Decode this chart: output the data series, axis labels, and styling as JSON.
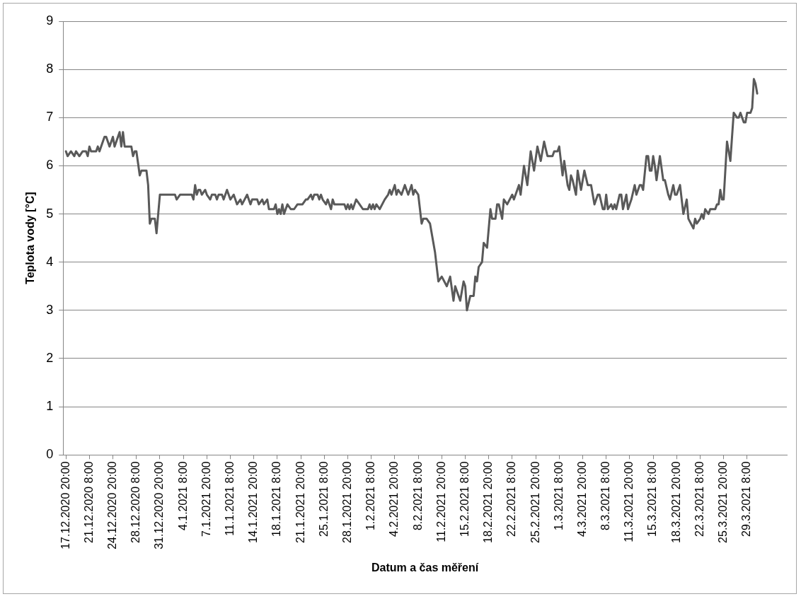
{
  "chart_data": {
    "type": "line",
    "xlabel": "Datum a čas měření",
    "ylabel": "Teplota vody [°C]",
    "xlim": [
      "2020-12-17T10:00",
      "2021-04-04T06:00"
    ],
    "xticks": [
      {
        "value": "2020-12-17T20:00",
        "label": "17.12.2020 20:00"
      },
      {
        "value": "2020-12-21T08:00",
        "label": "21.12.2020 8:00"
      },
      {
        "value": "2020-12-24T20:00",
        "label": "24.12.2020 20:00"
      },
      {
        "value": "2020-12-28T08:00",
        "label": "28.12.2020 8:00"
      },
      {
        "value": "2020-12-31T20:00",
        "label": "31.12.2020 20:00"
      },
      {
        "value": "2021-01-04T08:00",
        "label": "4.1.2021 8:00"
      },
      {
        "value": "2021-01-07T20:00",
        "label": "7.1.2021 20:00"
      },
      {
        "value": "2021-01-11T08:00",
        "label": "11.1.2021 8:00"
      },
      {
        "value": "2021-01-14T20:00",
        "label": "14.1.2021 20:00"
      },
      {
        "value": "2021-01-18T08:00",
        "label": "18.1.2021 8:00"
      },
      {
        "value": "2021-01-21T20:00",
        "label": "21.1.2021 20:00"
      },
      {
        "value": "2021-01-25T08:00",
        "label": "25.1.2021 8:00"
      },
      {
        "value": "2021-01-28T20:00",
        "label": "28.1.2021 20:00"
      },
      {
        "value": "2021-02-01T08:00",
        "label": "1.2.2021 8:00"
      },
      {
        "value": "2021-02-04T20:00",
        "label": "4.2.2021 20:00"
      },
      {
        "value": "2021-02-08T08:00",
        "label": "8.2.2021 8:00"
      },
      {
        "value": "2021-02-11T20:00",
        "label": "11.2.2021 20:00"
      },
      {
        "value": "2021-02-15T08:00",
        "label": "15.2.2021 8:00"
      },
      {
        "value": "2021-02-18T20:00",
        "label": "18.2.2021 20:00"
      },
      {
        "value": "2021-02-22T08:00",
        "label": "22.2.2021 8:00"
      },
      {
        "value": "2021-02-25T20:00",
        "label": "25.2.2021 20:00"
      },
      {
        "value": "2021-03-01T08:00",
        "label": "1.3.2021 8:00"
      },
      {
        "value": "2021-03-04T20:00",
        "label": "4.3.2021 20:00"
      },
      {
        "value": "2021-03-08T08:00",
        "label": "8.3.2021 8:00"
      },
      {
        "value": "2021-03-11T20:00",
        "label": "11.3.2021 20:00"
      },
      {
        "value": "2021-03-15T08:00",
        "label": "15.3.2021 8:00"
      },
      {
        "value": "2021-03-18T20:00",
        "label": "18.3.2021 20:00"
      },
      {
        "value": "2021-03-22T08:00",
        "label": "22.3.2021 8:00"
      },
      {
        "value": "2021-03-25T20:00",
        "label": "25.3.2021 20:00"
      },
      {
        "value": "2021-03-29T08:00",
        "label": "29.3.2021 8:00"
      }
    ],
    "ylim": [
      0,
      9
    ],
    "yticks": [
      0,
      1,
      2,
      3,
      4,
      5,
      6,
      7,
      8,
      9
    ],
    "grid": "y",
    "legend": false,
    "marker": "none",
    "line_style": "solid",
    "x": [
      "2020-12-17T20:00",
      "2020-12-18T02:00",
      "2020-12-18T14:00",
      "2020-12-19T02:00",
      "2020-12-19T08:00",
      "2020-12-19T20:00",
      "2020-12-20T08:00",
      "2020-12-20T20:00",
      "2020-12-21T02:00",
      "2020-12-21T08:00",
      "2020-12-21T14:00",
      "2020-12-22T08:00",
      "2020-12-22T14:00",
      "2020-12-22T20:00",
      "2020-12-23T14:00",
      "2020-12-23T20:00",
      "2020-12-24T08:00",
      "2020-12-24T20:00",
      "2020-12-25T02:00",
      "2020-12-25T20:00",
      "2020-12-26T02:00",
      "2020-12-26T08:00",
      "2020-12-26T14:00",
      "2020-12-27T14:00",
      "2020-12-27T20:00",
      "2020-12-28T02:00",
      "2020-12-28T08:00",
      "2020-12-28T20:00",
      "2020-12-29T02:00",
      "2020-12-29T20:00",
      "2020-12-30T02:00",
      "2020-12-30T08:00",
      "2020-12-30T14:00",
      "2020-12-31T02:00",
      "2020-12-31T08:00",
      "2020-12-31T20:00",
      "2021-01-03T02:00",
      "2021-01-03T08:00",
      "2021-01-03T20:00",
      "2021-01-05T14:00",
      "2021-01-05T20:00",
      "2021-01-06T02:00",
      "2021-01-06T08:00",
      "2021-01-06T14:00",
      "2021-01-06T20:00",
      "2021-01-07T02:00",
      "2021-01-07T14:00",
      "2021-01-07T20:00",
      "2021-01-08T08:00",
      "2021-01-08T14:00",
      "2021-01-09T02:00",
      "2021-01-09T08:00",
      "2021-01-09T14:00",
      "2021-01-10T02:00",
      "2021-01-10T08:00",
      "2021-01-10T20:00",
      "2021-01-11T08:00",
      "2021-01-11T20:00",
      "2021-01-12T08:00",
      "2021-01-12T20:00",
      "2021-01-13T02:00",
      "2021-01-13T20:00",
      "2021-01-14T08:00",
      "2021-01-14T14:00",
      "2021-01-15T08:00",
      "2021-01-15T14:00",
      "2021-01-16T02:00",
      "2021-01-16T08:00",
      "2021-01-16T20:00",
      "2021-01-17T02:00",
      "2021-01-17T20:00",
      "2021-01-18T02:00",
      "2021-01-18T08:00",
      "2021-01-18T14:00",
      "2021-01-18T20:00",
      "2021-01-19T02:00",
      "2021-01-19T08:00",
      "2021-01-19T20:00",
      "2021-01-20T08:00",
      "2021-01-20T20:00",
      "2021-01-21T08:00",
      "2021-01-22T02:00",
      "2021-01-22T14:00",
      "2021-01-22T20:00",
      "2021-01-23T08:00",
      "2021-01-23T14:00",
      "2021-01-23T20:00",
      "2021-01-24T08:00",
      "2021-01-24T14:00",
      "2021-01-24T20:00",
      "2021-01-25T02:00",
      "2021-01-25T14:00",
      "2021-01-25T20:00",
      "2021-01-26T08:00",
      "2021-01-26T14:00",
      "2021-01-26T20:00",
      "2021-01-28T08:00",
      "2021-01-28T14:00",
      "2021-01-28T20:00",
      "2021-01-29T02:00",
      "2021-01-29T08:00",
      "2021-01-29T14:00",
      "2021-01-30T02:00",
      "2021-01-30T14:00",
      "2021-01-31T02:00",
      "2021-01-31T20:00",
      "2021-02-01T02:00",
      "2021-02-01T08:00",
      "2021-02-01T14:00",
      "2021-02-01T20:00",
      "2021-02-02T02:00",
      "2021-02-02T14:00",
      "2021-02-03T08:00",
      "2021-02-03T20:00",
      "2021-02-04T02:00",
      "2021-02-04T08:00",
      "2021-02-04T20:00",
      "2021-02-05T02:00",
      "2021-02-05T08:00",
      "2021-02-05T20:00",
      "2021-02-06T08:00",
      "2021-02-06T20:00",
      "2021-02-07T08:00",
      "2021-02-07T14:00",
      "2021-02-07T20:00",
      "2021-02-08T08:00",
      "2021-02-08T20:00",
      "2021-02-09T02:00",
      "2021-02-09T14:00",
      "2021-02-10T02:00",
      "2021-02-10T20:00",
      "2021-02-11T08:00",
      "2021-02-11T20:00",
      "2021-02-12T14:00",
      "2021-02-13T02:00",
      "2021-02-13T14:00",
      "2021-02-13T20:00",
      "2021-02-14T14:00",
      "2021-02-15T02:00",
      "2021-02-15T08:00",
      "2021-02-15T14:00",
      "2021-02-16T02:00",
      "2021-02-16T14:00",
      "2021-02-16T20:00",
      "2021-02-17T02:00",
      "2021-02-17T08:00",
      "2021-02-17T20:00",
      "2021-02-18T02:00",
      "2021-02-18T14:00",
      "2021-02-19T02:00",
      "2021-02-19T08:00",
      "2021-02-19T20:00",
      "2021-02-20T02:00",
      "2021-02-20T08:00",
      "2021-02-20T20:00",
      "2021-02-21T02:00",
      "2021-02-21T14:00",
      "2021-02-22T08:00",
      "2021-02-22T14:00",
      "2021-02-23T08:00",
      "2021-02-23T14:00",
      "2021-02-24T02:00",
      "2021-02-24T14:00",
      "2021-02-25T02:00",
      "2021-02-25T14:00",
      "2021-02-26T02:00",
      "2021-02-26T14:00",
      "2021-02-27T02:00",
      "2021-02-27T14:00",
      "2021-02-28T08:00",
      "2021-02-28T14:00",
      "2021-03-01T02:00",
      "2021-03-01T08:00",
      "2021-03-01T14:00",
      "2021-03-01T20:00",
      "2021-03-02T02:00",
      "2021-03-02T14:00",
      "2021-03-02T20:00",
      "2021-03-03T02:00",
      "2021-03-03T08:00",
      "2021-03-03T20:00",
      "2021-03-04T02:00",
      "2021-03-04T14:00",
      "2021-03-05T02:00",
      "2021-03-05T14:00",
      "2021-03-06T02:00",
      "2021-03-06T14:00",
      "2021-03-07T02:00",
      "2021-03-07T08:00",
      "2021-03-07T20:00",
      "2021-03-08T02:00",
      "2021-03-08T08:00",
      "2021-03-08T14:00",
      "2021-03-09T02:00",
      "2021-03-09T08:00",
      "2021-03-09T14:00",
      "2021-03-09T20:00",
      "2021-03-10T08:00",
      "2021-03-10T14:00",
      "2021-03-10T20:00",
      "2021-03-11T08:00",
      "2021-03-11T14:00",
      "2021-03-12T02:00",
      "2021-03-12T14:00",
      "2021-03-12T20:00",
      "2021-03-13T08:00",
      "2021-03-13T14:00",
      "2021-03-13T20:00",
      "2021-03-14T08:00",
      "2021-03-14T14:00",
      "2021-03-14T20:00",
      "2021-03-15T02:00",
      "2021-03-15T08:00",
      "2021-03-15T14:00",
      "2021-03-15T20:00",
      "2021-03-16T08:00",
      "2021-03-16T20:00",
      "2021-03-17T02:00",
      "2021-03-17T14:00",
      "2021-03-17T20:00",
      "2021-03-18T08:00",
      "2021-03-18T14:00",
      "2021-03-18T20:00",
      "2021-03-19T08:00",
      "2021-03-19T20:00",
      "2021-03-20T08:00",
      "2021-03-20T14:00",
      "2021-03-21T08:00",
      "2021-03-21T14:00",
      "2021-03-21T20:00",
      "2021-03-22T08:00",
      "2021-03-22T14:00",
      "2021-03-22T20:00",
      "2021-03-23T02:00",
      "2021-03-23T14:00",
      "2021-03-23T20:00",
      "2021-03-24T14:00",
      "2021-03-24T20:00",
      "2021-03-25T02:00",
      "2021-03-25T08:00",
      "2021-03-25T14:00",
      "2021-03-25T20:00",
      "2021-03-26T08:00",
      "2021-03-26T20:00",
      "2021-03-27T08:00",
      "2021-03-27T20:00",
      "2021-03-28T02:00",
      "2021-03-28T08:00",
      "2021-03-28T20:00",
      "2021-03-29T02:00",
      "2021-03-29T08:00",
      "2021-03-29T20:00",
      "2021-03-30T02:00",
      "2021-03-30T08:00",
      "2021-03-30T14:00",
      "2021-03-30T20:00"
    ],
    "series": [
      {
        "color": "#595959",
        "values": [
          6.3,
          6.2,
          6.3,
          6.2,
          6.3,
          6.2,
          6.3,
          6.3,
          6.2,
          6.4,
          6.3,
          6.3,
          6.4,
          6.3,
          6.6,
          6.6,
          6.4,
          6.6,
          6.4,
          6.7,
          6.4,
          6.7,
          6.4,
          6.4,
          6.2,
          6.3,
          6.3,
          5.8,
          5.9,
          5.9,
          5.6,
          4.8,
          4.9,
          4.9,
          4.6,
          5.4,
          5.4,
          5.3,
          5.4,
          5.4,
          5.3,
          5.6,
          5.4,
          5.5,
          5.5,
          5.4,
          5.5,
          5.4,
          5.3,
          5.4,
          5.4,
          5.3,
          5.4,
          5.4,
          5.3,
          5.5,
          5.3,
          5.4,
          5.2,
          5.3,
          5.2,
          5.4,
          5.2,
          5.3,
          5.3,
          5.2,
          5.3,
          5.2,
          5.3,
          5.1,
          5.1,
          5.2,
          5.0,
          5.1,
          5.0,
          5.2,
          5.0,
          5.2,
          5.1,
          5.1,
          5.2,
          5.2,
          5.3,
          5.3,
          5.4,
          5.3,
          5.4,
          5.4,
          5.3,
          5.4,
          5.3,
          5.2,
          5.3,
          5.1,
          5.3,
          5.2,
          5.2,
          5.1,
          5.2,
          5.1,
          5.2,
          5.1,
          5.3,
          5.2,
          5.1,
          5.1,
          5.2,
          5.1,
          5.2,
          5.1,
          5.2,
          5.1,
          5.3,
          5.4,
          5.5,
          5.4,
          5.6,
          5.4,
          5.5,
          5.4,
          5.6,
          5.4,
          5.6,
          5.4,
          5.5,
          5.4,
          4.8,
          4.9,
          4.9,
          4.8,
          4.2,
          3.6,
          3.7,
          3.5,
          3.7,
          3.2,
          3.5,
          3.2,
          3.6,
          3.5,
          3.0,
          3.3,
          3.3,
          3.7,
          3.6,
          3.9,
          4.0,
          4.4,
          4.3,
          5.1,
          4.9,
          4.9,
          5.2,
          5.2,
          4.9,
          5.3,
          5.2,
          5.4,
          5.3,
          5.6,
          5.4,
          6.0,
          5.6,
          6.3,
          5.9,
          6.4,
          6.1,
          6.5,
          6.2,
          6.2,
          6.3,
          6.3,
          6.4,
          6.1,
          5.8,
          6.1,
          5.6,
          5.5,
          5.8,
          5.7,
          5.4,
          5.9,
          5.5,
          5.9,
          5.6,
          5.6,
          5.2,
          5.4,
          5.4,
          5.1,
          5.1,
          5.4,
          5.1,
          5.2,
          5.1,
          5.2,
          5.1,
          5.4,
          5.4,
          5.1,
          5.4,
          5.1,
          5.3,
          5.6,
          5.4,
          5.6,
          5.6,
          5.5,
          6.2,
          6.2,
          5.9,
          5.9,
          6.2,
          6.0,
          5.7,
          6.2,
          5.7,
          5.7,
          5.4,
          5.3,
          5.6,
          5.4,
          5.4,
          5.6,
          5.0,
          5.3,
          4.9,
          4.7,
          4.9,
          4.8,
          4.9,
          5.0,
          4.9,
          5.1,
          5.0,
          5.1,
          5.1,
          5.2,
          5.2,
          5.5,
          5.3,
          5.3,
          6.5,
          6.1,
          7.1,
          7.0,
          7.0,
          7.1,
          6.9,
          6.9,
          7.1,
          7.1,
          7.2,
          7.8,
          7.7,
          7.5
        ]
      }
    ]
  }
}
